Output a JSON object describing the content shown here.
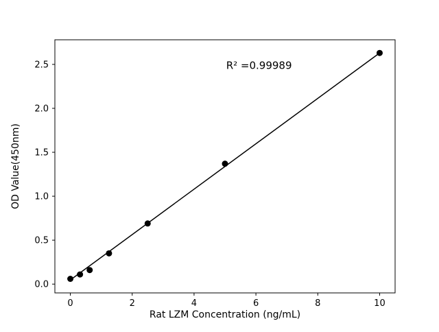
{
  "chart_data": {
    "type": "scatter",
    "title": "",
    "xlabel": "Rat LZM Concentration (ng/mL)",
    "ylabel": "OD Value(450nm)",
    "annotation": "R² =0.99989",
    "x": [
      0,
      0.3125,
      0.625,
      1.25,
      2.5,
      5,
      10
    ],
    "y": [
      0.06,
      0.11,
      0.16,
      0.35,
      0.69,
      1.37,
      2.63
    ],
    "fit_line": {
      "x": [
        0,
        10
      ],
      "y": [
        0.047,
        2.63
      ]
    },
    "annotation_pos": {
      "x": 6.1,
      "y": 2.45
    },
    "xlim": [
      -0.5,
      10.5
    ],
    "ylim": [
      -0.1,
      2.78
    ],
    "xticks": [
      0,
      2,
      4,
      6,
      8,
      10
    ],
    "yticks": [
      0.0,
      0.5,
      1.0,
      1.5,
      2.0,
      2.5
    ],
    "grid": false,
    "legend": "none",
    "colors": {
      "points": "#000000",
      "line": "#000000",
      "axis": "#000000",
      "background": "#ffffff"
    }
  }
}
